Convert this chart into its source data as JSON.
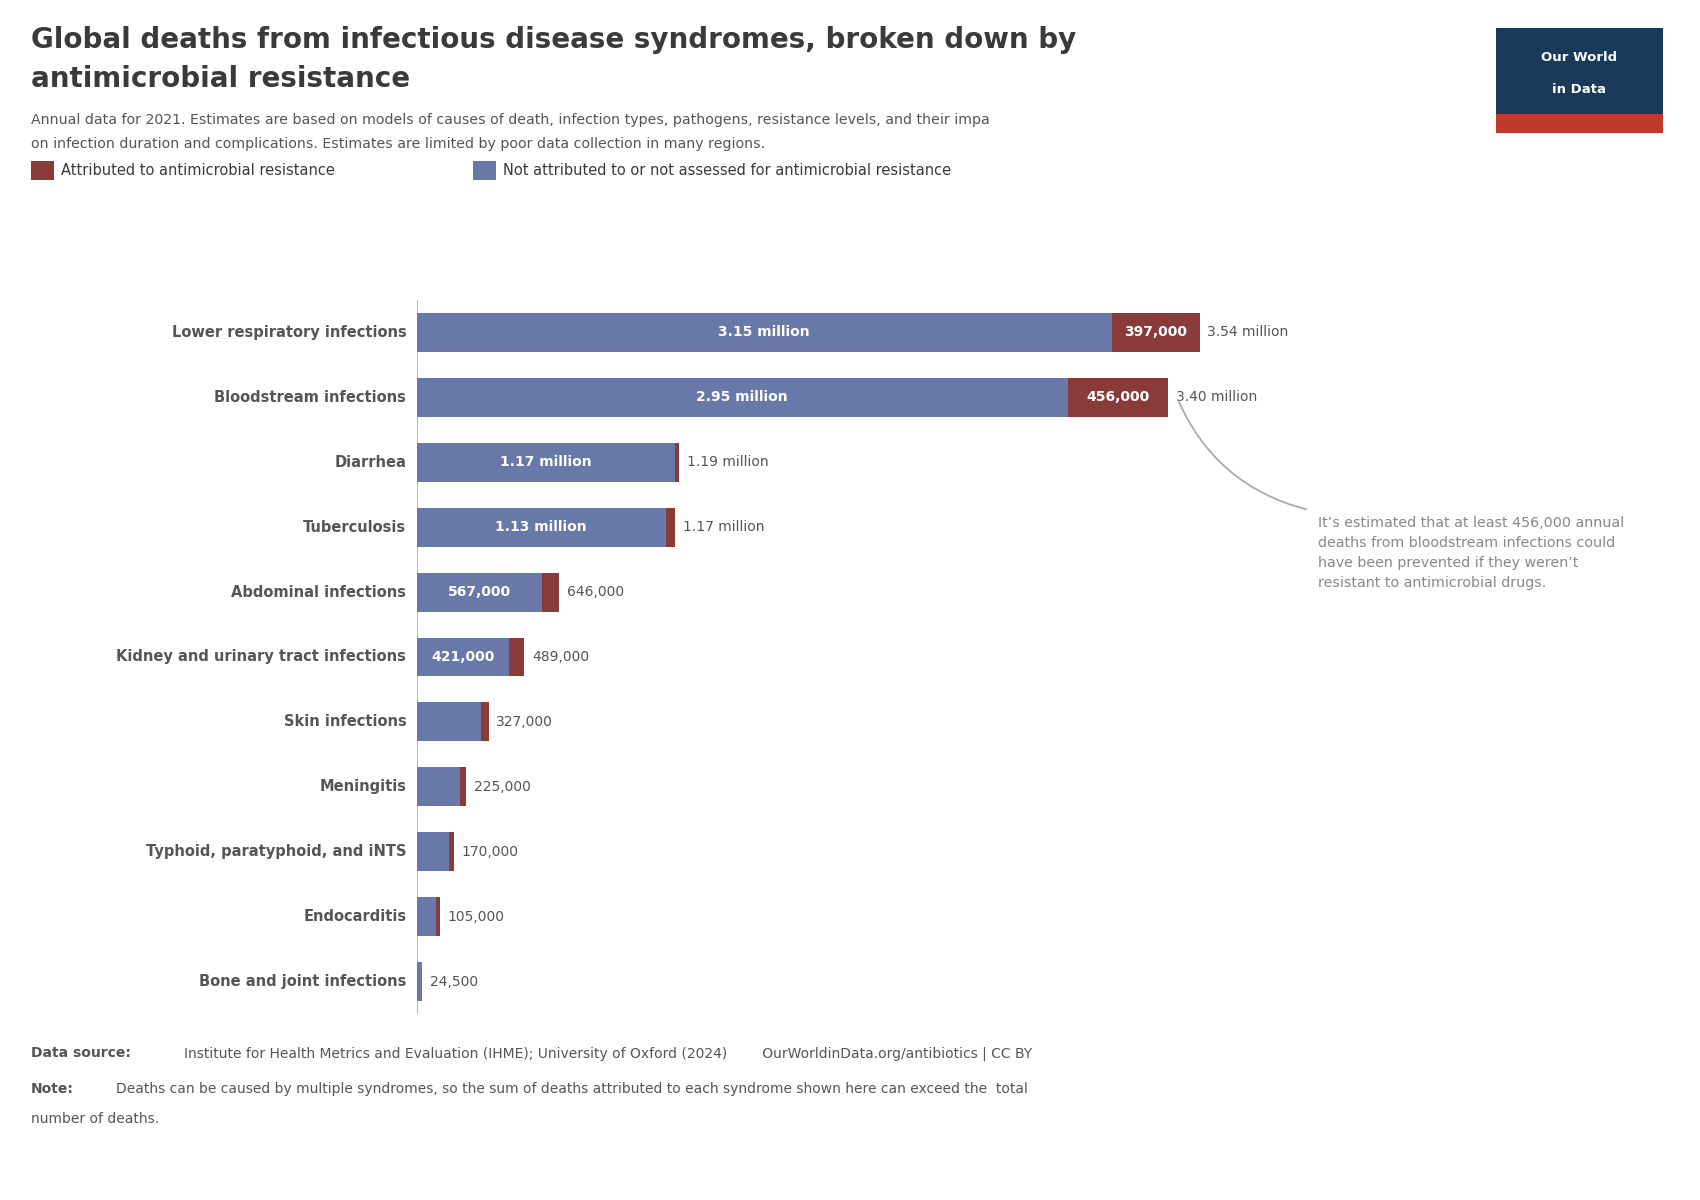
{
  "categories": [
    "Lower respiratory infections",
    "Bloodstream infections",
    "Diarrhea",
    "Tuberculosis",
    "Abdominal infections",
    "Kidney and urinary tract infections",
    "Skin infections",
    "Meningitis",
    "Typhoid, paratyphoid, and iNTS",
    "Endocarditis",
    "Bone and joint infections"
  ],
  "not_attributed": [
    3150000,
    2950000,
    1170000,
    1130000,
    567000,
    421000,
    290000,
    196000,
    148000,
    88000,
    23000
  ],
  "attributed": [
    397000,
    456000,
    20000,
    40000,
    79000,
    68000,
    37000,
    29000,
    22000,
    17000,
    1500
  ],
  "not_attributed_labels": [
    "3.15 million",
    "2.95 million",
    "1.17 million",
    "1.13 million",
    "567,000",
    "421,000",
    "",
    "",
    "",
    "",
    ""
  ],
  "attributed_labels": [
    "397,000",
    "456,000",
    "",
    "",
    "",
    "",
    "",
    "",
    "",
    "",
    ""
  ],
  "total_labels": [
    "3.54 million",
    "3.40 million",
    "1.19 million",
    "1.17 million",
    "646,000",
    "489,000",
    "327,000",
    "225,000",
    "170,000",
    "105,000",
    "24,500"
  ],
  "color_blue": "#6878a8",
  "color_red": "#8b3a3a",
  "title_line1": "Global deaths from infectious disease syndromes, broken down by",
  "title_line2": "antimicrobial resistance",
  "subtitle_line1": "Annual data for 2021. Estimates are based on models of causes of death, infection types, pathogens, resistance levels, and their impa",
  "subtitle_line2": "on infection duration and complications. Estimates are limited by poor data collection in many regions.",
  "legend_attributed": "Attributed to antimicrobial resistance",
  "legend_not_attributed": "Not attributed to or not assessed for antimicrobial resistance",
  "annotation_text": "It’s estimated that at least 456,000 annual\ndeaths from bloodstream infections could\nhave been prevented if they weren’t\nresistant to antimicrobial drugs.",
  "owid_box_color": "#1a3a5c",
  "owid_box_red": "#c0392b",
  "background_color": "#ffffff",
  "text_color": "#3a3a3a",
  "label_color": "#555555"
}
